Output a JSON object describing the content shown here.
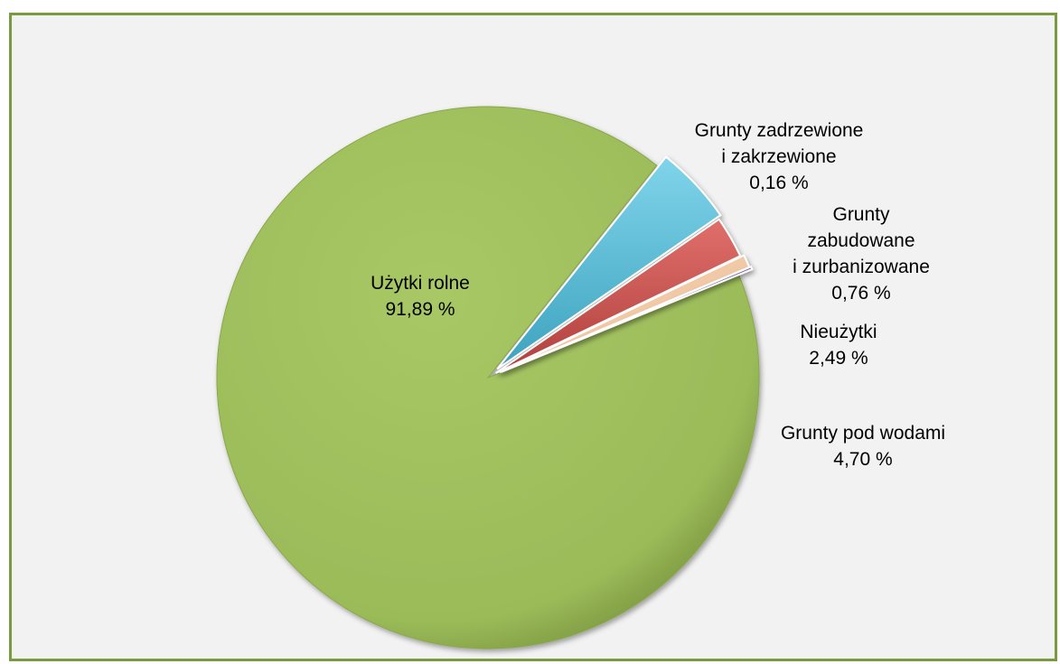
{
  "chart_data": {
    "type": "pie",
    "slices": [
      {
        "label_lines": [
          "Użytki rolne",
          "91,89 %"
        ],
        "value": 91.89,
        "color": "#9bbb59"
      },
      {
        "label_lines": [
          "Grunty pod wodami",
          "4,70 %"
        ],
        "value": 4.7,
        "color": "#4bacc6"
      },
      {
        "label_lines": [
          "Nieużytki",
          "2,49 %"
        ],
        "value": 2.49,
        "color": "#c0504d"
      },
      {
        "label_lines": [
          "Grunty",
          "zabudowane",
          "i zurbanizowane",
          "0,76 %"
        ],
        "value": 0.76,
        "color": "#f2c9a6"
      },
      {
        "label_lines": [
          "Grunty zadrzewione",
          "i zakrzewione",
          "0,16 %"
        ],
        "value": 0.16,
        "color": "#8064a2"
      }
    ]
  }
}
